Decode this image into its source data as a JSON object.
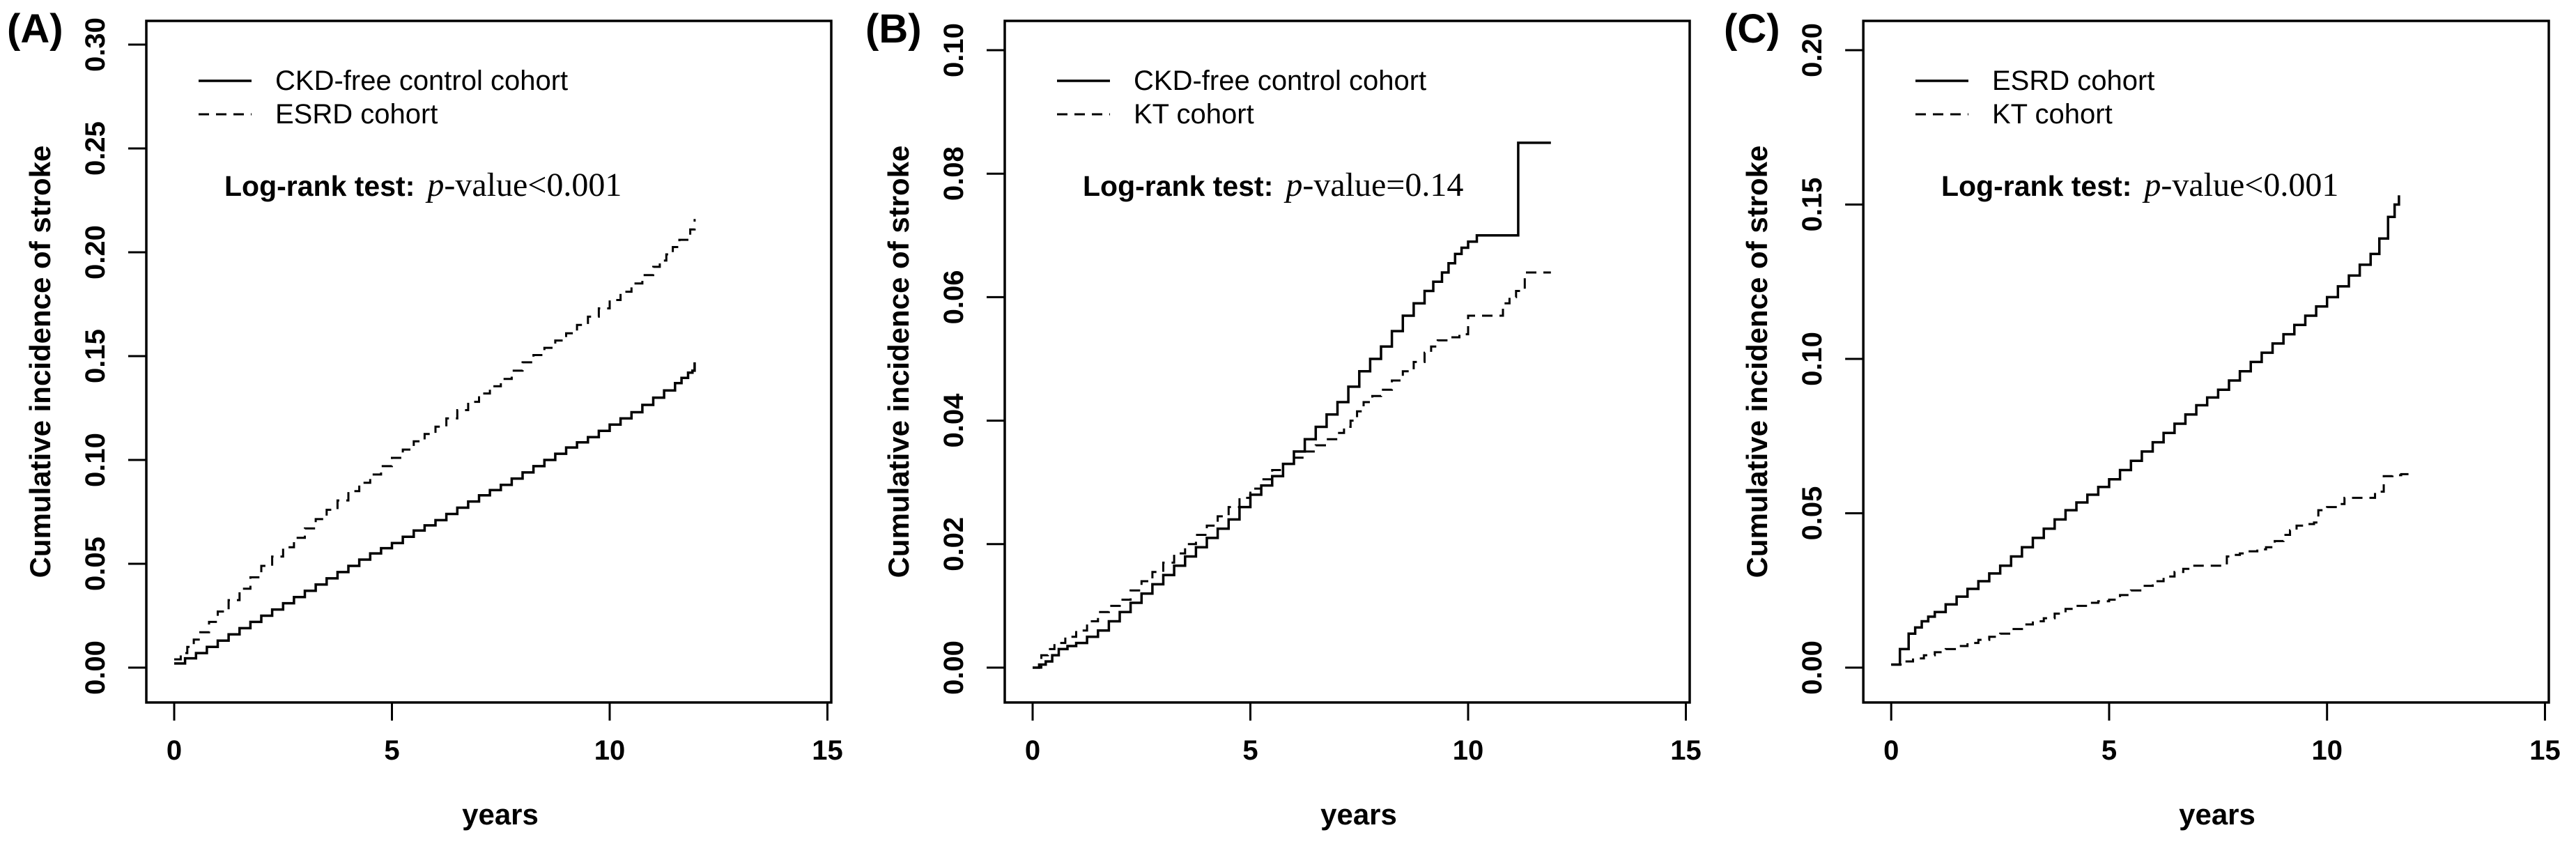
{
  "figure": {
    "background_color": "#ffffff",
    "line_color": "#000000"
  },
  "chart_data": [
    {
      "type": "line",
      "panel_label": "(A)",
      "xlabel": "years",
      "ylabel": "Cumulative incidence of stroke",
      "xlim": [
        0,
        15
      ],
      "ylim": [
        0.0,
        0.3
      ],
      "grid": false,
      "legend_position": "top-left",
      "xticks": [
        0,
        5,
        10,
        15
      ],
      "xtick_labels": [
        "0",
        "5",
        "10",
        "15"
      ],
      "yticks": [
        0.0,
        0.05,
        0.1,
        0.15,
        0.2,
        0.25,
        0.3
      ],
      "ytick_labels": [
        "0.00",
        "0.05",
        "0.10",
        "0.15",
        "0.20",
        "0.25",
        "0.30"
      ],
      "annotation": {
        "prefix": "Log-rank test:",
        "p": "p",
        "suffix": "-value<0.001"
      },
      "series": [
        {
          "name": "CKD-free control cohort",
          "style": "solid",
          "step": true,
          "points": [
            [
              0,
              0.002
            ],
            [
              0.5,
              0.007
            ],
            [
              1,
              0.013
            ],
            [
              1.5,
              0.019
            ],
            [
              2,
              0.025
            ],
            [
              2.5,
              0.031
            ],
            [
              3,
              0.037
            ],
            [
              3.5,
              0.043
            ],
            [
              4,
              0.049
            ],
            [
              4.5,
              0.055
            ],
            [
              5,
              0.06
            ],
            [
              5.5,
              0.066
            ],
            [
              6,
              0.071
            ],
            [
              6.5,
              0.077
            ],
            [
              7,
              0.083
            ],
            [
              7.5,
              0.088
            ],
            [
              8,
              0.094
            ],
            [
              8.5,
              0.1
            ],
            [
              9,
              0.106
            ],
            [
              9.5,
              0.111
            ],
            [
              10,
              0.117
            ],
            [
              10.5,
              0.123
            ],
            [
              11,
              0.13
            ],
            [
              11.5,
              0.137
            ],
            [
              11.8,
              0.142
            ],
            [
              11.9,
              0.143
            ],
            [
              11.95,
              0.147
            ]
          ]
        },
        {
          "name": "ESRD cohort",
          "style": "dashed",
          "step": true,
          "points": [
            [
              0,
              0.004
            ],
            [
              0.3,
              0.01
            ],
            [
              0.6,
              0.017
            ],
            [
              1,
              0.027
            ],
            [
              1.5,
              0.038
            ],
            [
              2,
              0.049
            ],
            [
              2.5,
              0.058
            ],
            [
              3,
              0.067
            ],
            [
              3.5,
              0.076
            ],
            [
              4,
              0.085
            ],
            [
              4.5,
              0.093
            ],
            [
              5,
              0.101
            ],
            [
              5.5,
              0.109
            ],
            [
              6,
              0.116
            ],
            [
              6.5,
              0.124
            ],
            [
              7,
              0.132
            ],
            [
              7.5,
              0.139
            ],
            [
              8,
              0.147
            ],
            [
              8.5,
              0.154
            ],
            [
              9,
              0.161
            ],
            [
              9.5,
              0.169
            ],
            [
              10,
              0.177
            ],
            [
              10.5,
              0.185
            ],
            [
              11,
              0.193
            ],
            [
              11.3,
              0.199
            ],
            [
              11.6,
              0.206
            ],
            [
              11.85,
              0.211
            ],
            [
              11.95,
              0.216
            ]
          ]
        }
      ]
    },
    {
      "type": "line",
      "panel_label": "(B)",
      "xlabel": "years",
      "ylabel": "Cumulative incidence of stroke",
      "xlim": [
        0,
        15
      ],
      "ylim": [
        0.0,
        0.1
      ],
      "grid": false,
      "legend_position": "top-left",
      "xticks": [
        0,
        5,
        10,
        15
      ],
      "xtick_labels": [
        "0",
        "5",
        "10",
        "15"
      ],
      "yticks": [
        0.0,
        0.02,
        0.04,
        0.06,
        0.08,
        0.1
      ],
      "ytick_labels": [
        "0.00",
        "0.02",
        "0.04",
        "0.06",
        "0.08",
        "0.10"
      ],
      "annotation": {
        "prefix": "Log-rank test:",
        "p": "p",
        "suffix": "-value=0.14"
      },
      "series": [
        {
          "name": "CKD-free control cohort",
          "style": "solid",
          "step": true,
          "points": [
            [
              0,
              0.0
            ],
            [
              0.3,
              0.001
            ],
            [
              0.6,
              0.003
            ],
            [
              1,
              0.004
            ],
            [
              1.5,
              0.006
            ],
            [
              2,
              0.009
            ],
            [
              2.5,
              0.012
            ],
            [
              3,
              0.015
            ],
            [
              3.5,
              0.018
            ],
            [
              4,
              0.021
            ],
            [
              4.5,
              0.024
            ],
            [
              5,
              0.028
            ],
            [
              5.5,
              0.031
            ],
            [
              6,
              0.035
            ],
            [
              6.5,
              0.039
            ],
            [
              7,
              0.043
            ],
            [
              7.5,
              0.048
            ],
            [
              8,
              0.052
            ],
            [
              8.5,
              0.057
            ],
            [
              9,
              0.061
            ],
            [
              9.4,
              0.064
            ],
            [
              9.7,
              0.067
            ],
            [
              10,
              0.069
            ],
            [
              10.2,
              0.07
            ],
            [
              11.1,
              0.07
            ],
            [
              11.15,
              0.085
            ],
            [
              11.9,
              0.085
            ]
          ]
        },
        {
          "name": "KT cohort",
          "style": "dashed",
          "step": true,
          "points": [
            [
              0,
              0.0
            ],
            [
              0.2,
              0.002
            ],
            [
              0.5,
              0.004
            ],
            [
              1,
              0.006
            ],
            [
              1.5,
              0.009
            ],
            [
              2,
              0.011
            ],
            [
              2.5,
              0.014
            ],
            [
              3,
              0.017
            ],
            [
              3.5,
              0.02
            ],
            [
              4,
              0.023
            ],
            [
              4.5,
              0.026
            ],
            [
              5,
              0.029
            ],
            [
              5.5,
              0.032
            ],
            [
              6,
              0.034
            ],
            [
              6.5,
              0.036
            ],
            [
              7,
              0.038
            ],
            [
              7.3,
              0.04
            ],
            [
              7.6,
              0.043
            ],
            [
              8,
              0.045
            ],
            [
              8.5,
              0.048
            ],
            [
              9,
              0.051
            ],
            [
              9.3,
              0.053
            ],
            [
              9.8,
              0.054
            ],
            [
              10,
              0.057
            ],
            [
              10.6,
              0.057
            ],
            [
              10.8,
              0.059
            ],
            [
              11.1,
              0.061
            ],
            [
              11.3,
              0.064
            ],
            [
              11.9,
              0.064
            ]
          ]
        }
      ]
    },
    {
      "type": "line",
      "panel_label": "(C)",
      "xlabel": "years",
      "ylabel": "Cumulative incidence of stroke",
      "xlim": [
        0,
        15
      ],
      "ylim": [
        0.0,
        0.2
      ],
      "grid": false,
      "legend_position": "top-left",
      "xticks": [
        0,
        5,
        10,
        15
      ],
      "xtick_labels": [
        "0",
        "5",
        "10",
        "15"
      ],
      "yticks": [
        0.0,
        0.05,
        0.1,
        0.15,
        0.2
      ],
      "ytick_labels": [
        "0.00",
        "0.05",
        "0.10",
        "0.15",
        "0.20"
      ],
      "annotation": {
        "prefix": "Log-rank test:",
        "p": "p",
        "suffix": "-value<0.001"
      },
      "series": [
        {
          "name": "ESRD cohort",
          "style": "solid",
          "step": true,
          "points": [
            [
              0,
              0.001
            ],
            [
              0.2,
              0.006
            ],
            [
              0.4,
              0.011
            ],
            [
              0.7,
              0.015
            ],
            [
              1,
              0.018
            ],
            [
              1.5,
              0.023
            ],
            [
              2,
              0.028
            ],
            [
              2.5,
              0.033
            ],
            [
              3,
              0.039
            ],
            [
              3.5,
              0.045
            ],
            [
              4,
              0.051
            ],
            [
              4.5,
              0.056
            ],
            [
              5,
              0.061
            ],
            [
              5.5,
              0.067
            ],
            [
              6,
              0.073
            ],
            [
              6.5,
              0.079
            ],
            [
              7,
              0.085
            ],
            [
              7.5,
              0.09
            ],
            [
              8,
              0.096
            ],
            [
              8.5,
              0.102
            ],
            [
              9,
              0.108
            ],
            [
              9.5,
              0.114
            ],
            [
              10,
              0.12
            ],
            [
              10.5,
              0.127
            ],
            [
              11,
              0.134
            ],
            [
              11.2,
              0.139
            ],
            [
              11.4,
              0.146
            ],
            [
              11.55,
              0.15
            ],
            [
              11.65,
              0.153
            ]
          ]
        },
        {
          "name": "KT cohort",
          "style": "dashed",
          "step": true,
          "points": [
            [
              0,
              0.001
            ],
            [
              0.5,
              0.003
            ],
            [
              1,
              0.005
            ],
            [
              1.5,
              0.007
            ],
            [
              2,
              0.009
            ],
            [
              2.5,
              0.011
            ],
            [
              3,
              0.014
            ],
            [
              3.5,
              0.016
            ],
            [
              4,
              0.019
            ],
            [
              4.5,
              0.021
            ],
            [
              5,
              0.022
            ],
            [
              5.5,
              0.025
            ],
            [
              6,
              0.028
            ],
            [
              6.5,
              0.031
            ],
            [
              6.9,
              0.033
            ],
            [
              7.5,
              0.033
            ],
            [
              7.7,
              0.036
            ],
            [
              8,
              0.037
            ],
            [
              8.6,
              0.039
            ],
            [
              9,
              0.043
            ],
            [
              9.3,
              0.046
            ],
            [
              9.7,
              0.047
            ],
            [
              9.8,
              0.051
            ],
            [
              10.2,
              0.053
            ],
            [
              10.4,
              0.055
            ],
            [
              10.9,
              0.055
            ],
            [
              11.1,
              0.057
            ],
            [
              11.3,
              0.062
            ],
            [
              11.9,
              0.063
            ]
          ]
        }
      ]
    }
  ]
}
